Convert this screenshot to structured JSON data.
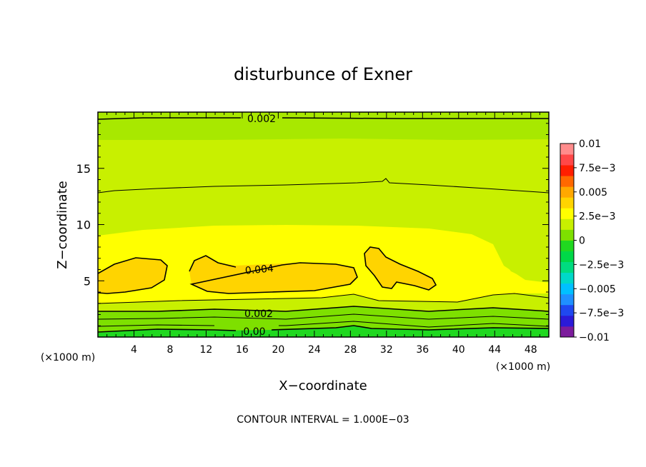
{
  "chart_data": {
    "type": "heatmap",
    "title": "disturbunce of Exner",
    "xlabel": "X−coordinate",
    "ylabel": "Z−coordinate",
    "x_unit_left": "(×1000 m)",
    "x_unit_right": "(×1000 m)",
    "xlim": [
      0,
      50
    ],
    "ylim": [
      0,
      20
    ],
    "x_ticks": [
      4,
      8,
      12,
      16,
      20,
      24,
      28,
      32,
      36,
      40,
      44,
      48
    ],
    "y_ticks": [
      5,
      10,
      15
    ],
    "contour_labels": [
      "0.002",
      "0.004",
      "0.002",
      "0.00"
    ],
    "footer": "CONTOUR INTERVAL = 1.000E−03",
    "colorbar": {
      "ticks": [
        "0.01",
        "7.5e−3",
        "0.005",
        "2.5e−3",
        "0",
        "−2.5e−3",
        "−0.005",
        "−7.5e−3",
        "−0.01"
      ],
      "tick_values": [
        0.01,
        0.0075,
        0.005,
        0.0025,
        0,
        -0.0025,
        -0.005,
        -0.0075,
        -0.01
      ],
      "colors": [
        "#7c1c9c",
        "#2b1ad8",
        "#1f48f0",
        "#1f90ff",
        "#00c0ff",
        "#00d8c8",
        "#00dc80",
        "#00d848",
        "#20d820",
        "#7ee000",
        "#c8f000",
        "#ffff00",
        "#ffd400",
        "#ffa800",
        "#ff6800",
        "#ff1e00",
        "#ff4848",
        "#ff8c8c"
      ]
    }
  }
}
